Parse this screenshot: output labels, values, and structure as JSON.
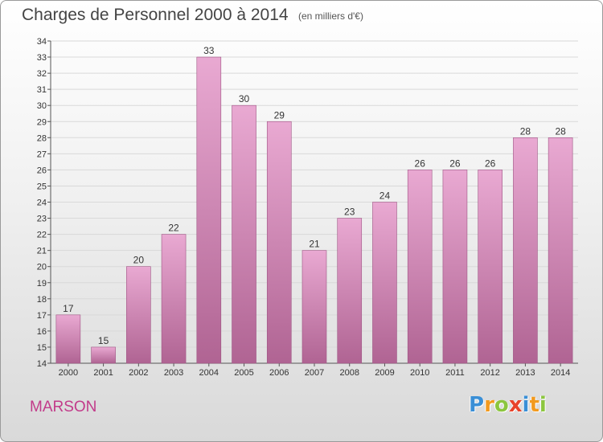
{
  "header": {
    "title": "Charges de Personnel 2000 à 2014",
    "unit_note": "(en milliers d'€)"
  },
  "footer": {
    "commune": "MARSON",
    "brand": "Proxiti",
    "brand_letters": [
      {
        "ch": "P",
        "color": "#3a8fd6"
      },
      {
        "ch": "r",
        "color": "#f29a1f"
      },
      {
        "ch": "o",
        "color": "#8cc63f"
      },
      {
        "ch": "x",
        "color": "#e8432b"
      },
      {
        "ch": "i",
        "color": "#3a8fd6"
      },
      {
        "ch": "t",
        "color": "#f29a1f"
      },
      {
        "ch": "i",
        "color": "#8cc63f"
      }
    ]
  },
  "colors": {
    "bar_top": "#e9a9d2",
    "bar_bottom": "#b06493",
    "bar_edge": "#9e5584",
    "grid": "#d9d9d9",
    "axis": "#555555",
    "commune": "#c23b8a"
  },
  "chart_data": {
    "type": "bar",
    "title": "Charges de Personnel 2000 à 2014",
    "subtitle": "(en milliers d'€)",
    "categories": [
      "2000",
      "2001",
      "2002",
      "2003",
      "2004",
      "2005",
      "2006",
      "2007",
      "2008",
      "2009",
      "2010",
      "2011",
      "2012",
      "2013",
      "2014"
    ],
    "values": [
      17,
      15,
      20,
      22,
      33,
      30,
      29,
      21,
      23,
      24,
      26,
      26,
      26,
      28,
      28
    ],
    "ylim": [
      14,
      34
    ],
    "yticks": [
      14,
      15,
      16,
      17,
      18,
      19,
      20,
      21,
      22,
      23,
      24,
      25,
      26,
      27,
      28,
      29,
      30,
      31,
      32,
      33,
      34
    ],
    "grid": true,
    "data_labels": true,
    "xlabel": "",
    "ylabel": ""
  }
}
